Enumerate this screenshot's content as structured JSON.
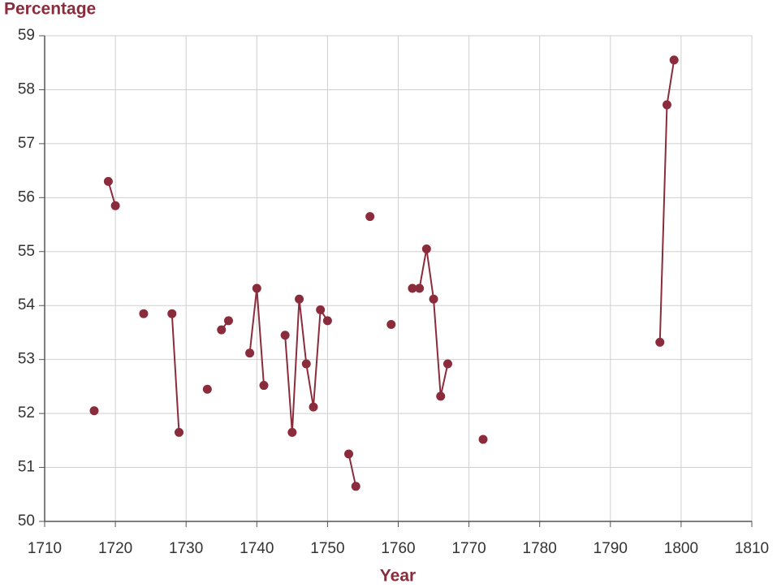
{
  "chart_data": {
    "type": "line",
    "y_label": "Percentage",
    "x_label": "Year",
    "color": "#8b2c3c",
    "grid": true,
    "x": [
      1717,
      1718,
      1719,
      1720,
      1721,
      1722,
      1723,
      1724,
      1725,
      1726,
      1727,
      1728,
      1729,
      1730,
      1731,
      1732,
      1733,
      1734,
      1735,
      1736,
      1737,
      1738,
      1739,
      1740,
      1741,
      1742,
      1743,
      1744,
      1745,
      1746,
      1747,
      1748,
      1749,
      1750,
      1751,
      1752,
      1753,
      1754,
      1755,
      1756,
      1757,
      1758,
      1759,
      1760,
      1761,
      1762,
      1763,
      1764,
      1765,
      1766,
      1767,
      1768,
      1769,
      1770,
      1771,
      1772,
      1773,
      1774,
      1775,
      1776,
      1777,
      1778,
      1779,
      1780,
      1781,
      1782,
      1783,
      1784,
      1785,
      1786,
      1787,
      1788,
      1789,
      1790,
      1791,
      1792,
      1793,
      1794,
      1795,
      1796,
      1797,
      1798,
      1799
    ],
    "values": [
      52.05,
      null,
      56.3,
      55.85,
      null,
      null,
      null,
      53.85,
      null,
      null,
      null,
      53.85,
      51.65,
      null,
      null,
      null,
      52.45,
      null,
      53.55,
      53.72,
      null,
      null,
      53.12,
      54.32,
      52.52,
      null,
      null,
      53.45,
      51.65,
      54.12,
      52.92,
      52.12,
      53.92,
      53.72,
      null,
      null,
      51.25,
      50.65,
      null,
      55.65,
      null,
      null,
      53.65,
      null,
      null,
      54.32,
      54.32,
      55.05,
      54.12,
      52.32,
      52.92,
      null,
      null,
      null,
      null,
      51.52,
      null,
      null,
      null,
      null,
      null,
      null,
      null,
      null,
      null,
      null,
      null,
      null,
      null,
      null,
      null,
      null,
      null,
      null,
      null,
      null,
      null,
      null,
      null,
      null,
      53.32,
      57.72,
      58.55
    ],
    "xlim": [
      1710,
      1810
    ],
    "xticks": [
      1710,
      1720,
      1730,
      1740,
      1750,
      1760,
      1770,
      1780,
      1790,
      1800,
      1810
    ],
    "ylim": [
      50,
      59
    ],
    "yticks": [
      50,
      51,
      52,
      53,
      54,
      55,
      56,
      57,
      58,
      59
    ]
  }
}
